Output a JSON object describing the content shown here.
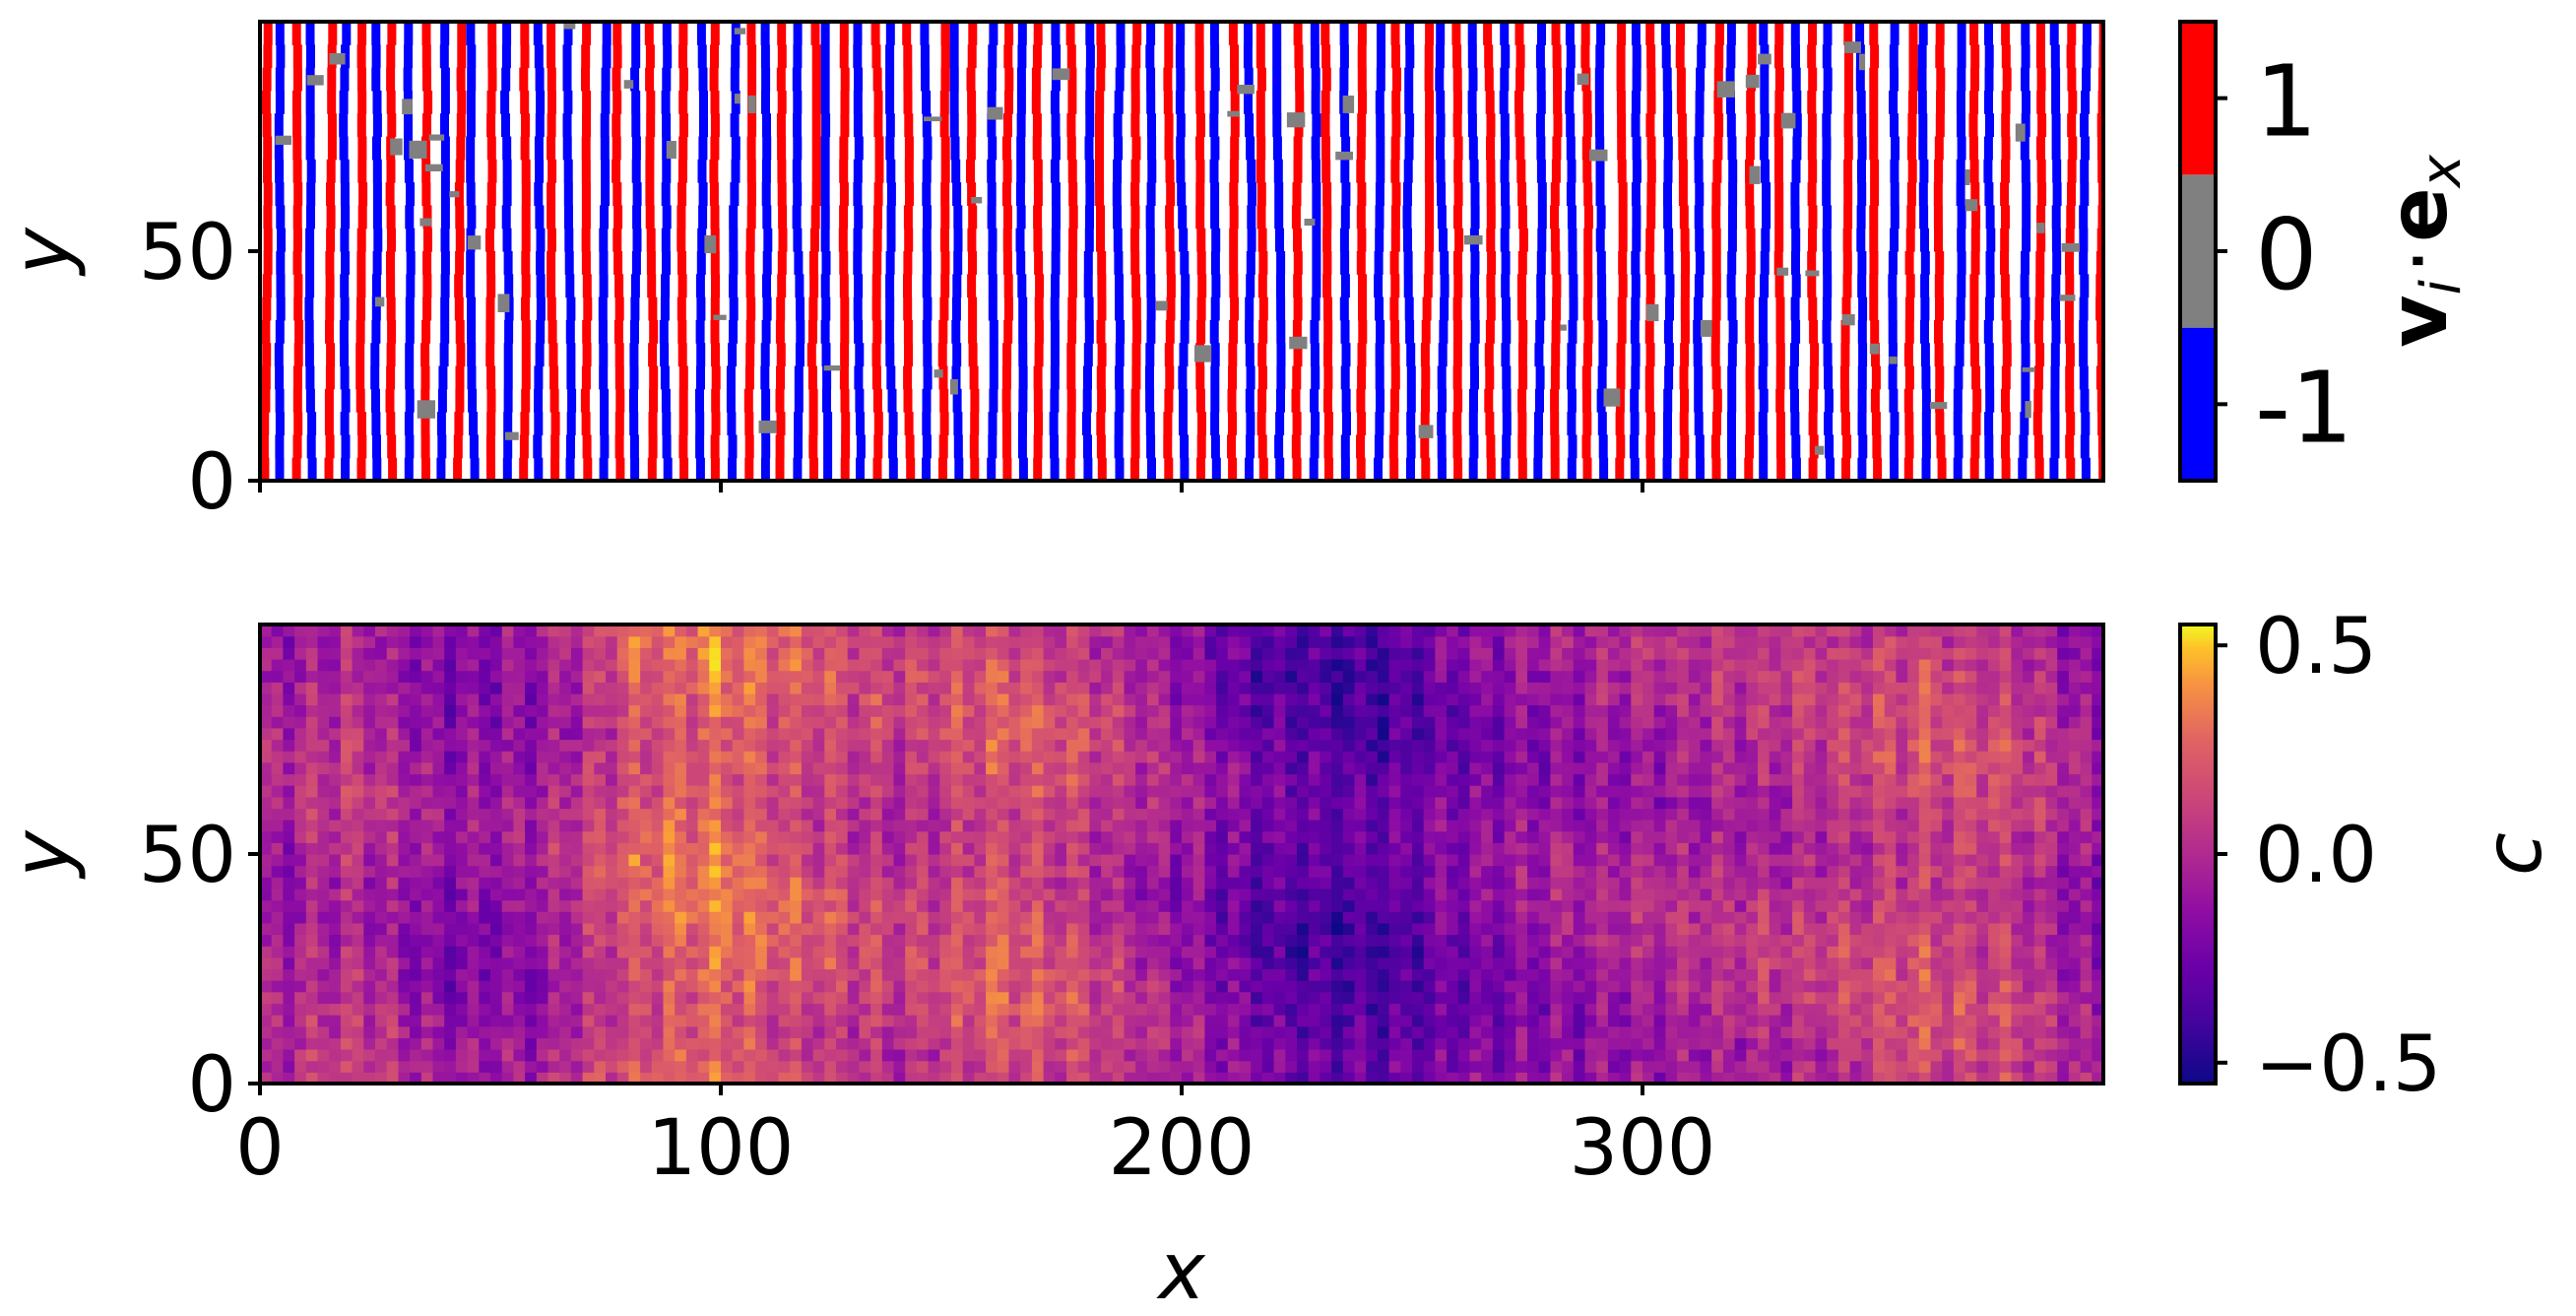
{
  "chart_data": [
    {
      "type": "heatmap",
      "panel": "top",
      "xlim": [
        0,
        400
      ],
      "ylim": [
        0,
        100
      ],
      "xticks": [
        0,
        100,
        200,
        300
      ],
      "yticks": [
        {
          "value": 0,
          "label": "0"
        },
        {
          "value": 50,
          "label": "50"
        }
      ],
      "xlabel": "",
      "ylabel": "y",
      "colorbar": {
        "kind": "discrete",
        "label_main": "v",
        "label_sub": "i",
        "label_dot": "·",
        "label_main2": "e",
        "label_sub2": "x",
        "levels": [
          {
            "value": -1,
            "label": "-1",
            "color": "#0000ff"
          },
          {
            "value": 0,
            "label": "0",
            "color": "#808080"
          },
          {
            "value": 1,
            "label": "1",
            "color": "#ff0000"
          }
        ],
        "gap_color": "#ffffff"
      },
      "pattern": {
        "description_values": [
          -1,
          0,
          1
        ],
        "stripe_sequence": [
          1,
          -1
        ],
        "gap_value": "white",
        "approx_stripe_period_x": 3.5
      }
    },
    {
      "type": "heatmap",
      "panel": "bottom",
      "xlim": [
        0,
        400
      ],
      "ylim": [
        0,
        100
      ],
      "xticks": [
        {
          "value": 0,
          "label": "0"
        },
        {
          "value": 100,
          "label": "100"
        },
        {
          "value": 200,
          "label": "200"
        },
        {
          "value": 300,
          "label": "300"
        }
      ],
      "yticks": [
        {
          "value": 0,
          "label": "0"
        },
        {
          "value": 50,
          "label": "50"
        }
      ],
      "xlabel": "x",
      "ylabel": "y",
      "colorbar": {
        "kind": "continuous",
        "colormap": "plasma",
        "label": "c",
        "vmin": -0.55,
        "vmax": 0.55,
        "ticks": [
          {
            "value": 0.5,
            "label": "0.5"
          },
          {
            "value": 0.0,
            "label": "0.0"
          },
          {
            "value": -0.5,
            "label": "−0.5"
          }
        ]
      },
      "profile_x": [
        0,
        20,
        40,
        60,
        80,
        100,
        120,
        140,
        160,
        180,
        200,
        220,
        240,
        260,
        280,
        300,
        320,
        340,
        360,
        380,
        400
      ],
      "profile_mean_c": [
        -0.1,
        0.05,
        -0.15,
        -0.1,
        0.2,
        0.3,
        0.15,
        0.05,
        0.2,
        0.1,
        -0.1,
        -0.3,
        -0.35,
        -0.2,
        -0.1,
        -0.05,
        0.0,
        0.05,
        0.15,
        0.1,
        -0.15
      ]
    }
  ]
}
